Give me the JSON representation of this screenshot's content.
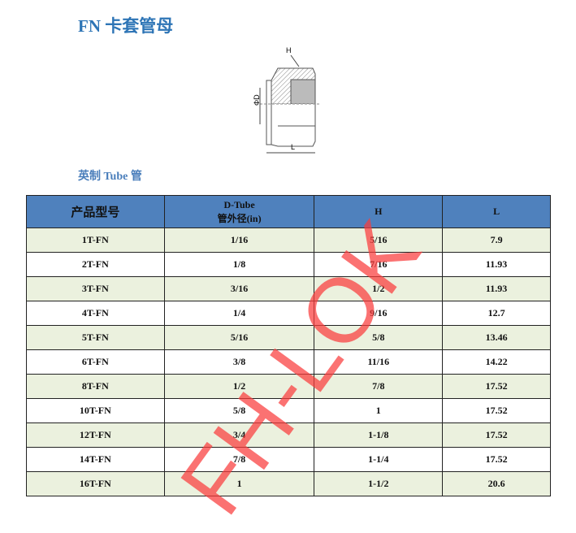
{
  "title": "FN  卡套管母",
  "drawing": {
    "label_h": "H",
    "label_d": "ΦD",
    "label_l": "L"
  },
  "subtitle": "英制 Tube 管",
  "table": {
    "headers": [
      "产品型号",
      "D-Tube",
      "管外径(in)",
      "H",
      "L"
    ],
    "rows": [
      [
        "1T-FN",
        "1/16",
        "5/16",
        "7.9"
      ],
      [
        "2T-FN",
        "1/8",
        "7/16",
        "11.93"
      ],
      [
        "3T-FN",
        "3/16",
        "1/2",
        "11.93"
      ],
      [
        "4T-FN",
        "1/4",
        "9/16",
        "12.7"
      ],
      [
        "5T-FN",
        "5/16",
        "5/8",
        "13.46"
      ],
      [
        "6T-FN",
        "3/8",
        "11/16",
        "14.22"
      ],
      [
        "8T-FN",
        "1/2",
        "7/8",
        "17.52"
      ],
      [
        "10T-FN",
        "5/8",
        "1",
        "17.52"
      ],
      [
        "12T-FN",
        "3/4",
        "1-1/8",
        "17.52"
      ],
      [
        "14T-FN",
        "7/8",
        "1-1/4",
        "17.52"
      ],
      [
        "16T-FN",
        "1",
        "1-1/2",
        "20.6"
      ]
    ]
  },
  "watermark": "FH-LOK",
  "colors": {
    "header": "#4f81bd",
    "stripe": "#ebf1de",
    "title": "#2e75b6",
    "watermark": "#fa3c3c"
  }
}
